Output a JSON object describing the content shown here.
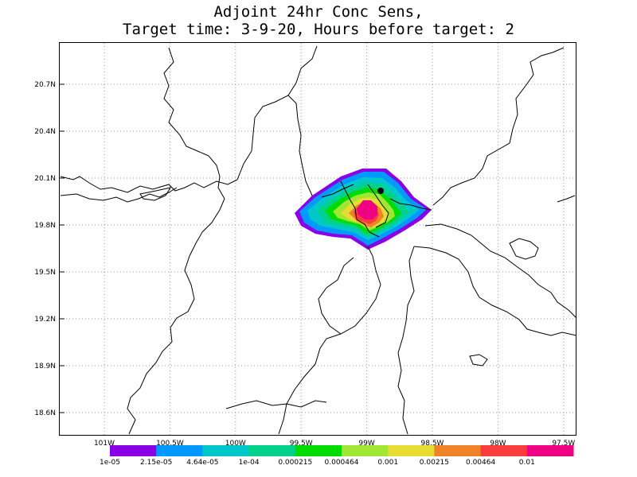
{
  "title": {
    "line1": "Adjoint 24hr Conc Sens,",
    "line2": "Target time: 3-9-20, Hours before target: 2"
  },
  "map": {
    "lat_ticks": [
      "20.7N",
      "20.4N",
      "20.1N",
      "19.8N",
      "19.5N",
      "19.2N",
      "18.9N",
      "18.6N"
    ],
    "lon_ticks": [
      "101W",
      "100.5W",
      "100W",
      "99.5W",
      "99W",
      "98.5W",
      "98W",
      "97.5W"
    ],
    "lat_range": [
      18.45,
      20.95
    ],
    "lon_range": [
      -101.3,
      -97.5
    ],
    "grid": "dotted"
  },
  "legend": {
    "colors": [
      "#8a00e6",
      "#0099ff",
      "#00c8c8",
      "#00d28c",
      "#00dc00",
      "#a0e632",
      "#e6dc32",
      "#f08228",
      "#fa3c3c",
      "#f00082"
    ],
    "labels": [
      "1e-05",
      "2.15e-05",
      "4.64e-05",
      "1e-04",
      "0.000215",
      "0.000464",
      "0.001",
      "0.00215",
      "0.00464",
      "0.01"
    ]
  }
}
